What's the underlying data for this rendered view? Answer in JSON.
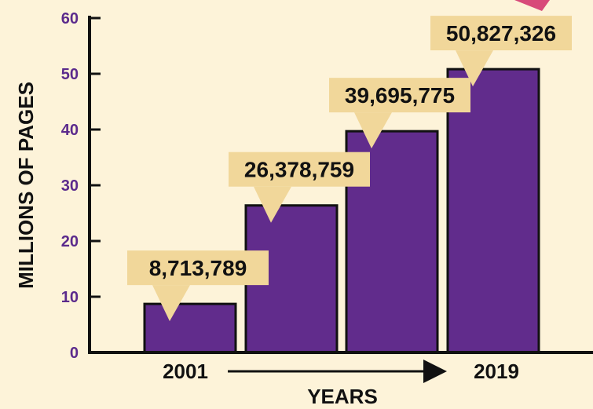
{
  "chart_data": {
    "type": "bar",
    "values": [
      8713789,
      26378759,
      39695775,
      50827326
    ],
    "data_labels": [
      "8,713,789",
      "26,378,759",
      "39,695,775",
      "50,827,326"
    ],
    "value_unit": "millions of pages",
    "ylabel": "MILLIONS OF PAGES",
    "xlabel": "YEARS",
    "x_start_label": "2001",
    "x_end_label": "2019",
    "ylim": [
      0,
      60
    ],
    "y_ticks": [
      "0",
      "10",
      "20",
      "30",
      "40",
      "50",
      "60"
    ],
    "grid": false,
    "bar_color": "#612c8c",
    "label_box_color": "#f1d79a",
    "axis_label_color": "#5b2a8c"
  }
}
